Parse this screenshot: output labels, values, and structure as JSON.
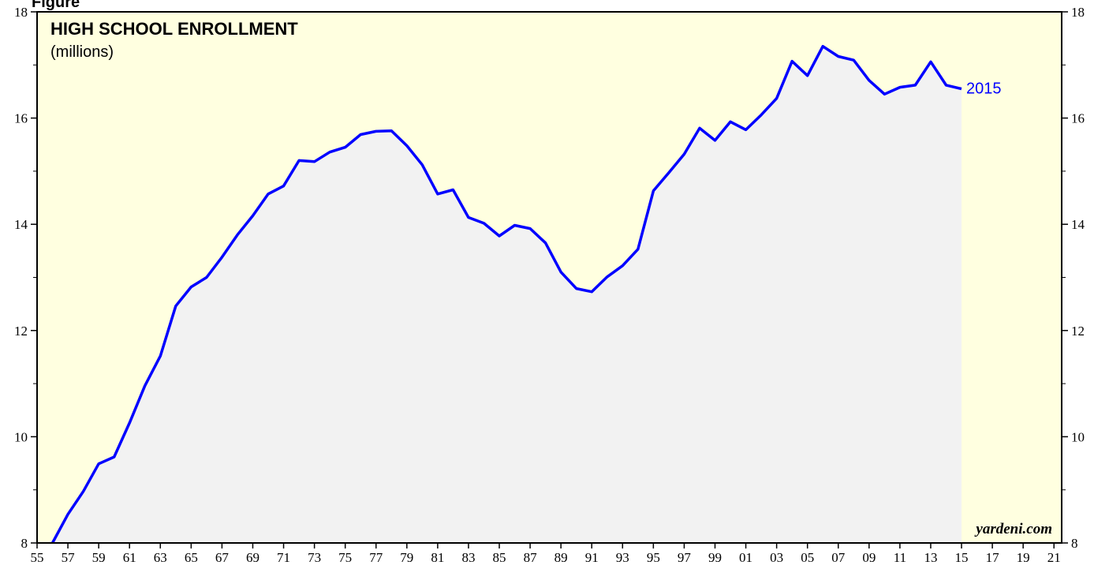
{
  "chart_data": {
    "type": "line",
    "figure_label": "Figure",
    "title": "HIGH SCHOOL ENROLLMENT",
    "subtitle": "(millions)",
    "annotation": "2015",
    "source": "yardeni.com",
    "x": [
      1956,
      1957,
      1958,
      1959,
      1960,
      1961,
      1962,
      1963,
      1964,
      1965,
      1966,
      1967,
      1968,
      1969,
      1970,
      1971,
      1972,
      1973,
      1974,
      1975,
      1976,
      1977,
      1978,
      1979,
      1980,
      1981,
      1982,
      1983,
      1984,
      1985,
      1986,
      1987,
      1988,
      1989,
      1990,
      1991,
      1992,
      1993,
      1994,
      1995,
      1996,
      1997,
      1998,
      1999,
      2000,
      2001,
      2002,
      2003,
      2004,
      2005,
      2006,
      2007,
      2008,
      2009,
      2010,
      2011,
      2012,
      2013,
      2014,
      2015
    ],
    "series": [
      {
        "name": "High School Enrollment",
        "color": "#0000ff",
        "values": [
          8.0,
          8.54,
          8.97,
          9.49,
          9.62,
          10.26,
          10.96,
          11.52,
          12.46,
          12.82,
          13.0,
          13.38,
          13.8,
          14.16,
          14.57,
          14.72,
          15.2,
          15.18,
          15.36,
          15.45,
          15.69,
          15.75,
          15.76,
          15.48,
          15.12,
          14.57,
          14.65,
          14.13,
          14.02,
          13.78,
          13.98,
          13.92,
          13.65,
          13.1,
          12.79,
          12.73,
          13.01,
          13.22,
          13.53,
          14.63,
          14.97,
          15.32,
          15.81,
          15.58,
          15.93,
          15.78,
          16.06,
          16.37,
          17.07,
          16.8,
          17.35,
          17.16,
          17.09,
          16.71,
          16.45,
          16.58,
          16.62,
          17.06,
          16.62,
          16.55
        ]
      }
    ],
    "area_color": "#f2f2f2",
    "background_color": "#ffffe0",
    "xlim": [
      1955,
      2021.5
    ],
    "xticks": [
      {
        "value": 1955,
        "label": "55"
      },
      {
        "value": 1957,
        "label": "57"
      },
      {
        "value": 1959,
        "label": "59"
      },
      {
        "value": 1961,
        "label": "61"
      },
      {
        "value": 1963,
        "label": "63"
      },
      {
        "value": 1965,
        "label": "65"
      },
      {
        "value": 1967,
        "label": "67"
      },
      {
        "value": 1969,
        "label": "69"
      },
      {
        "value": 1971,
        "label": "71"
      },
      {
        "value": 1973,
        "label": "73"
      },
      {
        "value": 1975,
        "label": "75"
      },
      {
        "value": 1977,
        "label": "77"
      },
      {
        "value": 1979,
        "label": "79"
      },
      {
        "value": 1981,
        "label": "81"
      },
      {
        "value": 1983,
        "label": "83"
      },
      {
        "value": 1985,
        "label": "85"
      },
      {
        "value": 1987,
        "label": "87"
      },
      {
        "value": 1989,
        "label": "89"
      },
      {
        "value": 1991,
        "label": "91"
      },
      {
        "value": 1993,
        "label": "93"
      },
      {
        "value": 1995,
        "label": "95"
      },
      {
        "value": 1997,
        "label": "97"
      },
      {
        "value": 1999,
        "label": "99"
      },
      {
        "value": 2001,
        "label": "01"
      },
      {
        "value": 2003,
        "label": "03"
      },
      {
        "value": 2005,
        "label": "05"
      },
      {
        "value": 2007,
        "label": "07"
      },
      {
        "value": 2009,
        "label": "09"
      },
      {
        "value": 2011,
        "label": "11"
      },
      {
        "value": 2013,
        "label": "13"
      },
      {
        "value": 2015,
        "label": "15"
      },
      {
        "value": 2017,
        "label": "17"
      },
      {
        "value": 2019,
        "label": "19"
      },
      {
        "value": 2021,
        "label": "21"
      }
    ],
    "ylim": [
      8,
      18
    ],
    "yticks": [
      8,
      10,
      12,
      14,
      16,
      18
    ],
    "yticks_minor": [
      9,
      11,
      13,
      15,
      17
    ]
  }
}
